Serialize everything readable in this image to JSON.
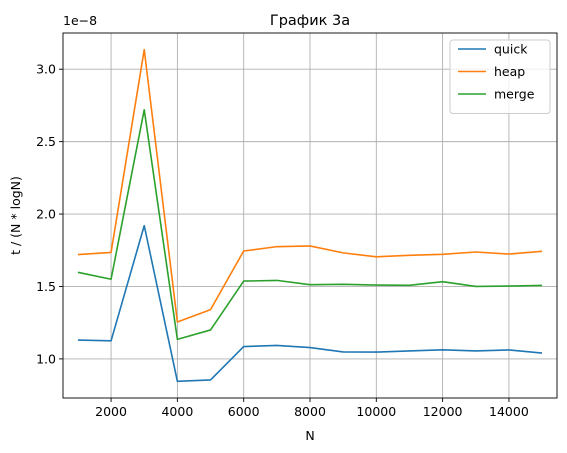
{
  "chart_data": {
    "type": "line",
    "title": "График 3а",
    "xlabel": "N",
    "ylabel": "t / (N * logN)",
    "y_offset_label": "1e−8",
    "xlim": [
      550,
      15450
    ],
    "ylim": [
      0.73,
      3.25
    ],
    "x_ticks": [
      2000,
      4000,
      6000,
      8000,
      10000,
      12000,
      14000
    ],
    "x_tick_labels": [
      "2000",
      "4000",
      "6000",
      "8000",
      "10000",
      "12000",
      "14000"
    ],
    "y_ticks": [
      1.0,
      1.5,
      2.0,
      2.5,
      3.0
    ],
    "y_tick_labels": [
      "1.0",
      "1.5",
      "2.0",
      "2.5",
      "3.0"
    ],
    "grid": true,
    "legend_position": "top-right",
    "x": [
      1000,
      2000,
      3000,
      4000,
      5000,
      6000,
      7000,
      8000,
      9000,
      10000,
      11000,
      12000,
      13000,
      14000,
      15000
    ],
    "series": [
      {
        "name": "quick",
        "color": "#1f77b4",
        "values": [
          1.13,
          1.125,
          1.92,
          0.845,
          0.855,
          1.085,
          1.093,
          1.078,
          1.048,
          1.047,
          1.055,
          1.063,
          1.055,
          1.062,
          1.04
        ]
      },
      {
        "name": "heap",
        "color": "#ff7f0e",
        "values": [
          1.72,
          1.735,
          3.135,
          1.255,
          1.34,
          1.745,
          1.775,
          1.78,
          1.732,
          1.705,
          1.715,
          1.722,
          1.738,
          1.724,
          1.743
        ]
      },
      {
        "name": "merge",
        "color": "#2ca02c",
        "values": [
          1.598,
          1.55,
          2.72,
          1.135,
          1.2,
          1.537,
          1.542,
          1.512,
          1.515,
          1.51,
          1.508,
          1.533,
          1.5,
          1.503,
          1.507
        ]
      }
    ]
  }
}
